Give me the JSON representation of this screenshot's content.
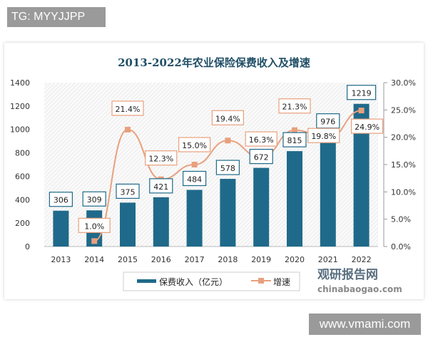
{
  "watermark_top": "TG: MYYJJPP",
  "watermark_bottom": "www.vmami.com",
  "logo": {
    "cn": "观研报告网",
    "en": "chinabaogao.com"
  },
  "colors": {
    "bar": "#1f6a8a",
    "line": "#e8a07e",
    "title": "#1f4e66"
  },
  "chart_data": {
    "type": "bar+line",
    "title": "2013-2022年农业保险保费收入及增速",
    "categories": [
      "2013",
      "2014",
      "2015",
      "2016",
      "2017",
      "2018",
      "2019",
      "2020",
      "2021",
      "2022"
    ],
    "series": [
      {
        "name": "保费收入（亿元）",
        "type": "bar",
        "axis": "left",
        "values": [
          306,
          309,
          375,
          421,
          484,
          578,
          672,
          815,
          976,
          1219
        ],
        "labels": [
          "306",
          "309",
          "375",
          "421",
          "484",
          "578",
          "672",
          "815",
          "976",
          "1219"
        ]
      },
      {
        "name": "增速",
        "type": "line",
        "axis": "right",
        "values": [
          null,
          1.0,
          21.4,
          12.3,
          15.0,
          19.4,
          16.3,
          21.3,
          19.8,
          24.9
        ],
        "labels": [
          "",
          "1.0%",
          "21.4%",
          "12.3%",
          "15.0%",
          "19.4%",
          "16.3%",
          "21.3%",
          "19.8%",
          "24.9%"
        ]
      }
    ],
    "y_left": {
      "range": [
        0,
        1400
      ],
      "ticks": [
        "0",
        "200",
        "400",
        "600",
        "800",
        "1000",
        "1200",
        "1400"
      ]
    },
    "y_right": {
      "range": [
        0,
        30
      ],
      "ticks": [
        "0.0%",
        "5.0%",
        "10.0%",
        "15.0%",
        "20.0%",
        "25.0%",
        "30.0%"
      ]
    },
    "legend": {
      "position": "bottom",
      "items": [
        "保费收入（亿元）",
        "增速"
      ]
    },
    "grid": false
  }
}
